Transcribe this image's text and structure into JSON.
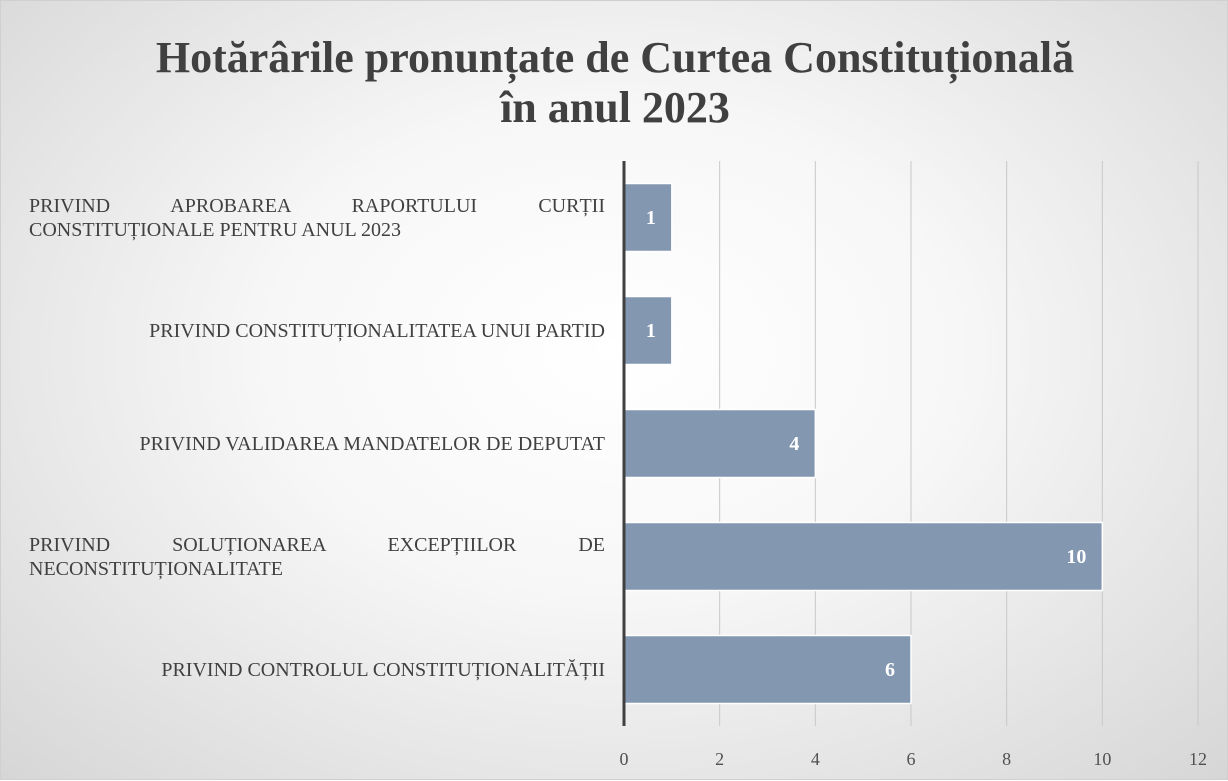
{
  "chart_data": {
    "type": "bar",
    "orientation": "horizontal",
    "title": [
      "Hotărârile pronunțate de Curtea Constituțională",
      "în anul 2023"
    ],
    "categories": [
      "PRIVIND APROBAREA RAPORTULUI CURȚII CONSTITUȚIONALE PENTRU ANUL 2023",
      "PRIVIND CONSTITUȚIONALITATEA UNUI PARTID",
      "PRIVIND VALIDAREA MANDATELOR DE DEPUTAT",
      "PRIVIND SOLUȚIONAREA EXCEPȚIILOR DE NECONSTITUȚIONALITATE",
      "PRIVIND CONTROLUL CONSTITUȚIONALITĂȚII"
    ],
    "values": [
      1,
      1,
      4,
      10,
      6
    ],
    "color": "#8497b0",
    "xlim": [
      0,
      12
    ],
    "xticks": [
      0,
      2,
      4,
      6,
      8,
      10,
      12
    ],
    "grid": true
  }
}
